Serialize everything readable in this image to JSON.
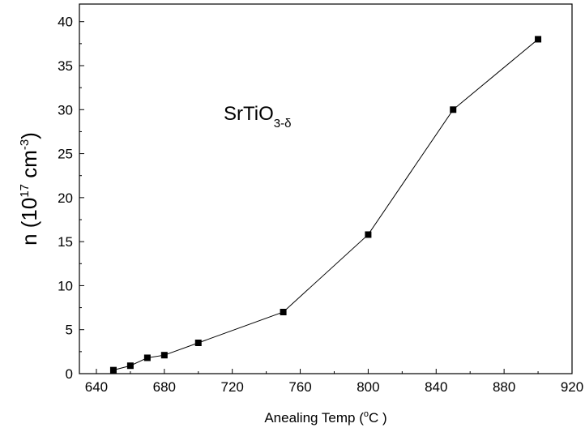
{
  "chart_data": {
    "type": "line",
    "x": [
      650,
      660,
      670,
      680,
      700,
      750,
      800,
      850,
      900
    ],
    "y": [
      0.4,
      0.9,
      1.8,
      2.1,
      3.5,
      7.0,
      15.8,
      30.0,
      38.0
    ],
    "xlim": [
      630,
      920
    ],
    "ylim": [
      0,
      42
    ],
    "xticks": [
      640,
      680,
      720,
      760,
      800,
      840,
      880,
      920
    ],
    "yticks": [
      0,
      5,
      10,
      15,
      20,
      25,
      30,
      35,
      40
    ],
    "xlabel": "Anealing Temp (",
    "xlabel_unit_sup": "o",
    "xlabel_unit": "C )",
    "ylabel": "n (10",
    "ylabel_sup": "17",
    "ylabel_mid": " cm",
    "ylabel_sup2": "-3",
    "ylabel_end": ")",
    "annotation": "SrTiO",
    "annotation_sub": "3-δ",
    "grid": false,
    "marker": "square",
    "line_color": "#000000",
    "marker_color": "#000000"
  }
}
